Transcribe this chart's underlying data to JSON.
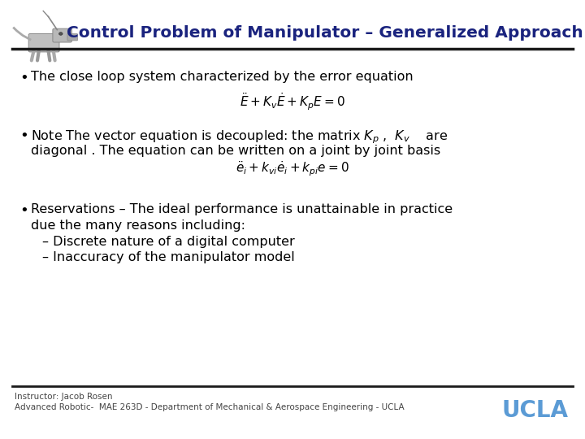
{
  "title": "Control Problem of Manipulator – Generalized Approach",
  "title_color": "#1a237e",
  "title_fontsize": 14.5,
  "background_color": "#ffffff",
  "header_line_color": "#1a1a1a",
  "bullet1": "The close loop system characterized by the error equation",
  "eq1": "$\\ddot{E} + K_v\\dot{E} + K_p E = 0$",
  "bullet2_part1": "Note The vector equation is decoupled: the matrix $K_p$ ,  $K_v$    are",
  "bullet2_part2": "diagonal . The equation can be written on a joint by joint basis",
  "eq2": "$\\ddot{e}_i + k_{vi}\\dot{e}_i + k_{pi}e = 0$",
  "bullet3_line1": "Reservations – The ideal performance is unattainable in practice",
  "bullet3_line2": "due the many reasons including:",
  "sub1": "Discrete nature of a digital computer",
  "sub2": "Inaccuracy of the manipulator model",
  "footer_line1": "Instructor: Jacob Rosen",
  "footer_line2": "Advanced Robotic-  MAE 263D - Department of Mechanical & Aerospace Engineering - UCLA",
  "ucla_text": "UCLA",
  "ucla_color": "#5b9bd5",
  "footer_color": "#444444",
  "text_color": "#000000",
  "bullet_color": "#000000",
  "body_fontsize": 11.5,
  "footer_fontsize": 7.5,
  "fig_width": 7.2,
  "fig_height": 5.4,
  "dpi": 100
}
